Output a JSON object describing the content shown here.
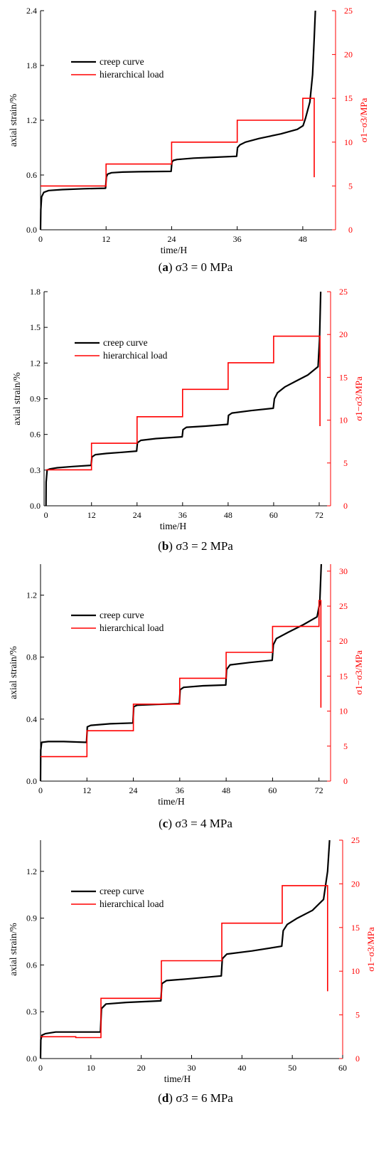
{
  "legend": {
    "creep": "creep curve",
    "load": "hierarchical load"
  },
  "colors": {
    "creep": "#000000",
    "load": "#ff0000"
  },
  "chart_data": [
    {
      "type": "line",
      "caption_letter": "a",
      "caption_rest": " σ3 = 0 MPa",
      "xlabel": "time/H",
      "ylabel": "axial strain/%",
      "y2label": "σ1−σ3/MPa",
      "xlim": [
        0,
        54
      ],
      "xticks": [
        0,
        12,
        24,
        36,
        48
      ],
      "ylim": [
        0,
        2.4
      ],
      "yticks": [
        0.0,
        0.6,
        1.2,
        1.8,
        2.4
      ],
      "ytick_labels": [
        "0.0",
        "0.6",
        "1.2",
        "1.8",
        "2.4"
      ],
      "y2lim": [
        0,
        25
      ],
      "y2ticks": [
        0,
        5,
        10,
        15,
        20,
        25
      ],
      "legend_placement": "top-left",
      "series": [
        {
          "name": "creep curve",
          "axis": "left",
          "x": [
            0,
            0.05,
            0.2,
            0.6,
            1.5,
            4,
            8,
            11.9,
            12.05,
            12.3,
            13,
            15,
            18,
            21,
            23.9,
            24.05,
            24.3,
            25,
            28,
            32,
            35.9,
            36.05,
            36.5,
            37.5,
            40,
            44,
            47,
            48.05,
            48.5,
            49.3,
            49.8,
            50.1,
            50.3
          ],
          "y": [
            0,
            0.22,
            0.36,
            0.41,
            0.43,
            0.44,
            0.45,
            0.455,
            0.58,
            0.61,
            0.625,
            0.632,
            0.636,
            0.638,
            0.64,
            0.74,
            0.76,
            0.77,
            0.785,
            0.795,
            0.805,
            0.9,
            0.93,
            0.96,
            1.0,
            1.05,
            1.1,
            1.14,
            1.22,
            1.4,
            1.7,
            2.1,
            2.4
          ]
        },
        {
          "name": "hierarchical load",
          "axis": "right",
          "x": [
            0,
            12,
            12,
            24,
            24,
            36,
            36,
            48,
            48,
            50.1,
            50.1
          ],
          "y": [
            5,
            5,
            7.5,
            7.5,
            10,
            10,
            12.5,
            12.5,
            15,
            15,
            6
          ]
        }
      ]
    },
    {
      "type": "line",
      "caption_letter": "b",
      "caption_rest": " σ3 = 2 MPa",
      "xlabel": "time/H",
      "ylabel": "axial strain/%",
      "y2label": "σ1−σ3/MPa",
      "xlim": [
        -0.5,
        75
      ],
      "xticks": [
        0,
        12,
        24,
        36,
        48,
        60,
        72
      ],
      "ylim": [
        0,
        1.8
      ],
      "yticks": [
        0.0,
        0.3,
        0.6,
        0.9,
        1.2,
        1.5,
        1.8
      ],
      "ytick_labels": [
        "0.0",
        "0.3",
        "0.6",
        "0.9",
        "1.2",
        "1.5",
        "1.8"
      ],
      "y2lim": [
        0,
        25
      ],
      "y2ticks": [
        0,
        5,
        10,
        15,
        20,
        25
      ],
      "legend_placement": "top-left",
      "series": [
        {
          "name": "creep curve",
          "axis": "left",
          "x": [
            0,
            0.05,
            0.3,
            1,
            3,
            7,
            11.9,
            12.1,
            13,
            16,
            20,
            23.9,
            24.1,
            25,
            29,
            35.9,
            36.1,
            37,
            42,
            47.9,
            48.1,
            49,
            54,
            59.9,
            60.2,
            61,
            63,
            66,
            69,
            71.7,
            72.1,
            72.4
          ],
          "y": [
            0,
            0.2,
            0.3,
            0.31,
            0.32,
            0.33,
            0.34,
            0.41,
            0.43,
            0.44,
            0.45,
            0.46,
            0.53,
            0.55,
            0.565,
            0.58,
            0.64,
            0.66,
            0.67,
            0.685,
            0.76,
            0.78,
            0.8,
            0.82,
            0.9,
            0.95,
            1.0,
            1.05,
            1.1,
            1.17,
            1.4,
            1.8
          ]
        },
        {
          "name": "hierarchical load",
          "axis": "right",
          "x": [
            0,
            12,
            12,
            24,
            24,
            36,
            36,
            48,
            48,
            60,
            60,
            72.2,
            72.2
          ],
          "y": [
            4.2,
            4.2,
            7.3,
            7.3,
            10.4,
            10.4,
            13.6,
            13.6,
            16.7,
            16.7,
            19.8,
            19.8,
            9.3
          ]
        }
      ]
    },
    {
      "type": "line",
      "caption_letter": "c",
      "caption_rest": " σ3 = 4 MPa",
      "xlabel": "time/H",
      "ylabel": "axial strain/%",
      "y2label": "σ1−σ3/MPa",
      "xlim": [
        0,
        75
      ],
      "xticks": [
        0,
        12,
        24,
        36,
        48,
        60,
        72
      ],
      "ylim": [
        0,
        1.4
      ],
      "yticks": [
        0.0,
        0.4,
        0.8,
        1.2
      ],
      "ytick_labels": [
        "0.0",
        "0.4",
        "0.8",
        "1.2"
      ],
      "y2lim": [
        0,
        31
      ],
      "y2ticks": [
        0,
        5,
        10,
        15,
        20,
        25,
        30
      ],
      "legend_placement": "top-left",
      "series": [
        {
          "name": "creep curve",
          "axis": "left",
          "x": [
            0,
            0.05,
            0.3,
            2,
            6,
            11.9,
            12.1,
            13,
            18,
            23.9,
            24.1,
            25,
            30,
            35.9,
            36.1,
            37,
            42,
            47.9,
            48.1,
            49,
            54,
            59.9,
            60.2,
            61,
            64,
            68,
            71.5,
            72.2,
            72.6
          ],
          "y": [
            0,
            0.2,
            0.25,
            0.255,
            0.255,
            0.25,
            0.35,
            0.36,
            0.37,
            0.375,
            0.48,
            0.49,
            0.495,
            0.5,
            0.59,
            0.605,
            0.615,
            0.62,
            0.72,
            0.75,
            0.765,
            0.78,
            0.88,
            0.92,
            0.96,
            1.01,
            1.06,
            1.15,
            1.4
          ]
        },
        {
          "name": "hierarchical load",
          "axis": "right",
          "x": [
            0,
            12,
            12,
            24,
            24,
            36,
            36,
            48,
            48,
            60,
            60,
            72,
            72,
            72.5,
            72.5
          ],
          "y": [
            3.5,
            3.5,
            7.2,
            7.2,
            11,
            11,
            14.7,
            14.7,
            18.4,
            18.4,
            22.1,
            22.1,
            25.8,
            25.8,
            10.5
          ]
        }
      ]
    },
    {
      "type": "line",
      "caption_letter": "d",
      "caption_rest": " σ3 = 6 MPa",
      "xlabel": "time/H",
      "ylabel": "axial strain/%",
      "y2label": "σ1−σ3/MPa",
      "xlim": [
        0,
        60
      ],
      "xticks": [
        0,
        10,
        20,
        30,
        40,
        50,
        60
      ],
      "ylim": [
        0,
        1.4
      ],
      "yticks": [
        0.0,
        0.3,
        0.6,
        0.9,
        1.2
      ],
      "ytick_labels": [
        "0.0",
        "0.3",
        "0.6",
        "0.9",
        "1.2"
      ],
      "y2lim": [
        0,
        25
      ],
      "y2ticks": [
        0,
        5,
        10,
        15,
        20,
        25
      ],
      "legend_placement": "top-left",
      "series": [
        {
          "name": "creep curve",
          "axis": "left",
          "x": [
            0,
            0.05,
            0.3,
            1,
            3,
            6,
            11.9,
            12.1,
            13,
            17,
            23.9,
            24.1,
            25,
            29,
            35.9,
            36.1,
            37,
            42,
            47.9,
            48.2,
            49,
            51,
            54,
            56.2,
            57,
            57.4
          ],
          "y": [
            0,
            0.12,
            0.15,
            0.16,
            0.17,
            0.17,
            0.17,
            0.32,
            0.35,
            0.36,
            0.37,
            0.48,
            0.5,
            0.51,
            0.53,
            0.64,
            0.67,
            0.69,
            0.72,
            0.82,
            0.86,
            0.9,
            0.95,
            1.02,
            1.2,
            1.4
          ]
        },
        {
          "name": "hierarchical load",
          "axis": "right",
          "x": [
            0,
            7,
            7,
            12,
            12,
            24,
            24,
            36,
            36,
            48,
            48,
            57,
            57
          ],
          "y": [
            2.5,
            2.5,
            2.4,
            2.4,
            6.9,
            6.9,
            11.2,
            11.2,
            15.5,
            15.5,
            19.8,
            19.8,
            7.7
          ]
        }
      ]
    }
  ]
}
